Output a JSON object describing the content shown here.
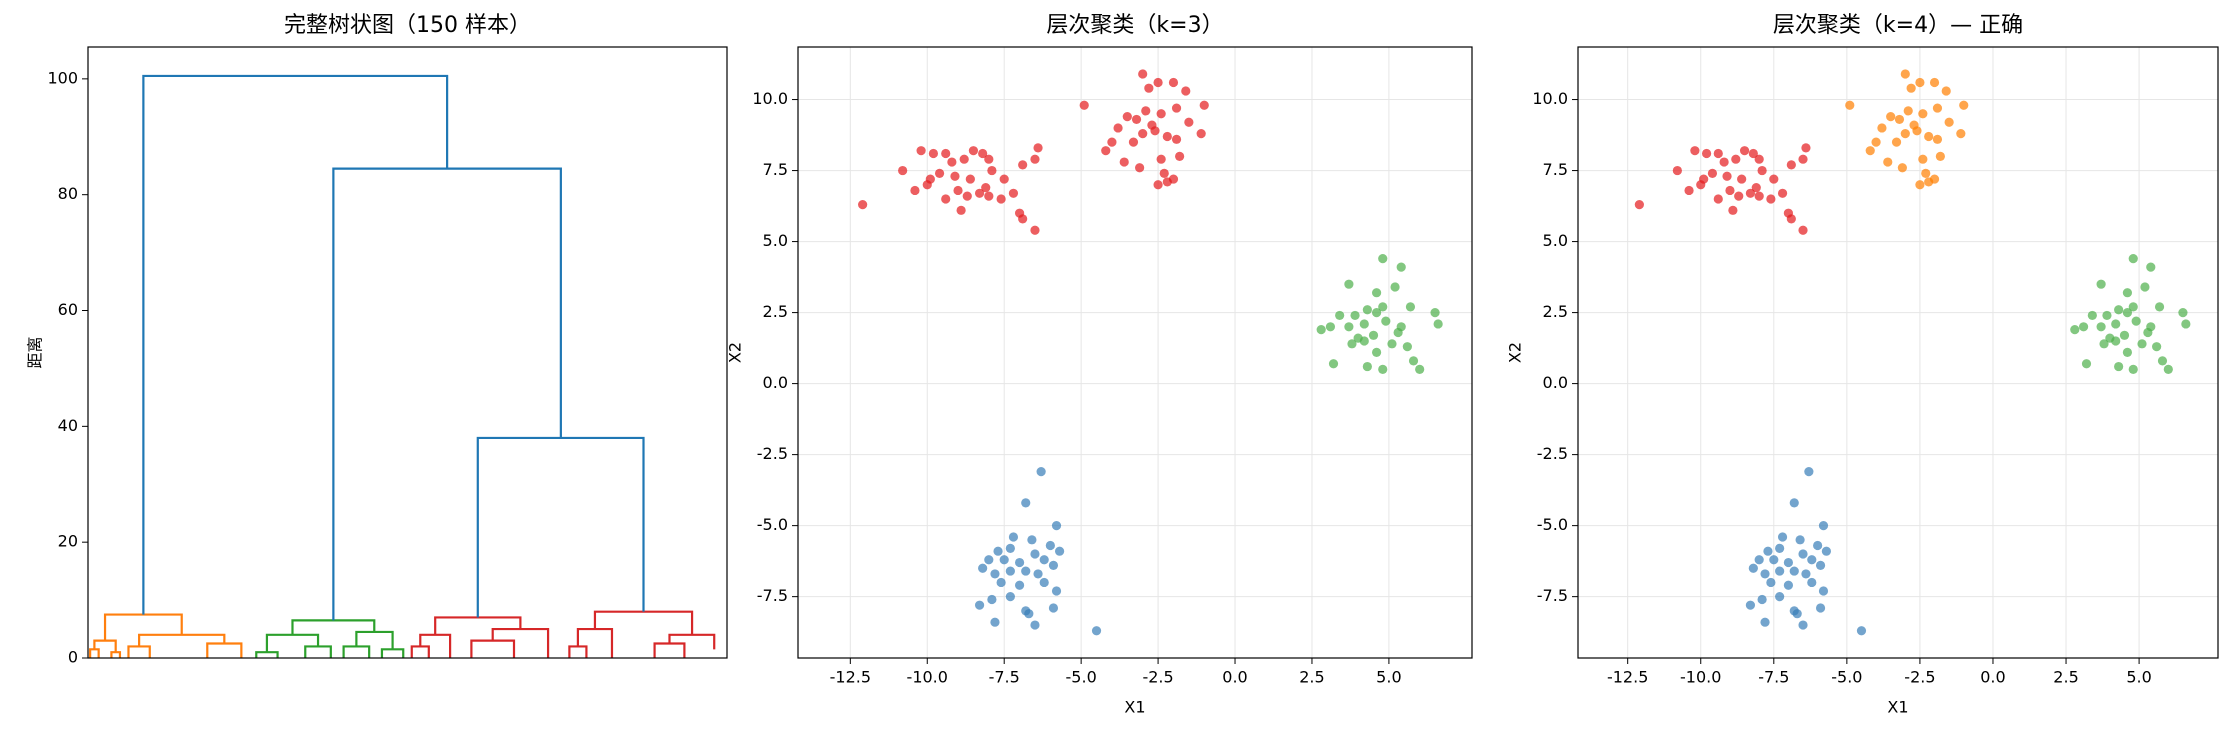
{
  "chart_data": [
    {
      "type": "dendrogram",
      "title": "完整树状图（150 样本）",
      "ylabel": "距离",
      "xlim": [
        0,
        1500
      ],
      "ylim": [
        0,
        105.5
      ],
      "yticks": [
        0,
        20,
        40,
        60,
        80,
        100
      ],
      "grid": false,
      "links": [
        {
          "color": "#ff7f0e",
          "icoord": [
            5,
            5,
            25,
            25
          ],
          "dcoord": [
            0,
            1.5,
            1.5,
            0
          ]
        },
        {
          "color": "#ff7f0e",
          "icoord": [
            55,
            55,
            75,
            75
          ],
          "dcoord": [
            0,
            1,
            1,
            0
          ]
        },
        {
          "color": "#ff7f0e",
          "icoord": [
            15,
            15,
            65,
            65
          ],
          "dcoord": [
            1.5,
            3,
            3,
            1
          ]
        },
        {
          "color": "#ff7f0e",
          "icoord": [
            95,
            95,
            145,
            145
          ],
          "dcoord": [
            0,
            2,
            2,
            0
          ]
        },
        {
          "color": "#ff7f0e",
          "icoord": [
            280,
            280,
            360,
            360
          ],
          "dcoord": [
            0,
            2.5,
            2.5,
            0
          ]
        },
        {
          "color": "#ff7f0e",
          "icoord": [
            120,
            120,
            320,
            320
          ],
          "dcoord": [
            2,
            4,
            4,
            2.5
          ]
        },
        {
          "color": "#ff7f0e",
          "icoord": [
            40,
            40,
            220,
            220
          ],
          "dcoord": [
            3,
            7.5,
            7.5,
            4
          ]
        },
        {
          "color": "#2ca02c",
          "icoord": [
            395,
            395,
            445,
            445
          ],
          "dcoord": [
            0,
            1,
            1,
            0
          ]
        },
        {
          "color": "#2ca02c",
          "icoord": [
            510,
            510,
            570,
            570
          ],
          "dcoord": [
            0,
            2,
            2,
            0
          ]
        },
        {
          "color": "#2ca02c",
          "icoord": [
            420,
            420,
            540,
            540
          ],
          "dcoord": [
            1,
            4,
            4,
            2
          ]
        },
        {
          "color": "#2ca02c",
          "icoord": [
            600,
            600,
            660,
            660
          ],
          "dcoord": [
            0,
            2,
            2,
            0
          ]
        },
        {
          "color": "#2ca02c",
          "icoord": [
            690,
            690,
            740,
            740
          ],
          "dcoord": [
            0,
            1.5,
            1.5,
            0
          ]
        },
        {
          "color": "#2ca02c",
          "icoord": [
            630,
            630,
            715,
            715
          ],
          "dcoord": [
            2,
            4.5,
            4.5,
            1.5
          ]
        },
        {
          "color": "#2ca02c",
          "icoord": [
            480,
            480,
            672,
            672
          ],
          "dcoord": [
            4,
            6.5,
            6.5,
            4.5
          ]
        },
        {
          "color": "#d62728",
          "icoord": [
            760,
            760,
            800,
            800
          ],
          "dcoord": [
            0,
            2,
            2,
            0
          ]
        },
        {
          "color": "#d62728",
          "icoord": [
            780,
            780,
            850,
            850
          ],
          "dcoord": [
            2,
            4,
            4,
            0
          ]
        },
        {
          "color": "#d62728",
          "icoord": [
            900,
            900,
            1000,
            1000
          ],
          "dcoord": [
            0,
            3,
            3,
            0
          ]
        },
        {
          "color": "#d62728",
          "icoord": [
            950,
            950,
            1080,
            1080
          ],
          "dcoord": [
            3,
            5,
            5,
            0
          ]
        },
        {
          "color": "#d62728",
          "icoord": [
            815,
            815,
            1015,
            1015
          ],
          "dcoord": [
            4,
            7,
            7,
            5
          ]
        },
        {
          "color": "#d62728",
          "icoord": [
            1130,
            1130,
            1170,
            1170
          ],
          "dcoord": [
            0,
            2,
            2,
            0
          ]
        },
        {
          "color": "#d62728",
          "icoord": [
            1150,
            1150,
            1230,
            1230
          ],
          "dcoord": [
            2,
            5,
            5,
            0
          ]
        },
        {
          "color": "#d62728",
          "icoord": [
            1330,
            1330,
            1400,
            1400
          ],
          "dcoord": [
            0,
            2.5,
            2.5,
            0
          ]
        },
        {
          "color": "#d62728",
          "icoord": [
            1365,
            1365,
            1470,
            1470
          ],
          "dcoord": [
            2.5,
            4,
            4,
            1.5
          ]
        },
        {
          "color": "#d62728",
          "icoord": [
            1190,
            1190,
            1418,
            1418
          ],
          "dcoord": [
            5,
            8,
            8,
            4
          ]
        },
        {
          "color": "#1f77b4",
          "icoord": [
            915,
            915,
            1304,
            1304
          ],
          "dcoord": [
            7,
            38,
            38,
            8
          ]
        },
        {
          "color": "#1f77b4",
          "icoord": [
            576,
            576,
            1110,
            1110
          ],
          "dcoord": [
            6.5,
            84.5,
            84.5,
            38
          ]
        },
        {
          "color": "#1f77b4",
          "icoord": [
            130,
            130,
            843,
            843
          ],
          "dcoord": [
            7.5,
            100.5,
            100.5,
            84.5
          ]
        }
      ]
    },
    {
      "type": "scatter",
      "title": "层次聚类（k=3）",
      "xlabel": "X1",
      "ylabel": "X2",
      "xlim": [
        -14.2,
        7.7
      ],
      "ylim": [
        -9.66,
        11.85
      ],
      "grid": true,
      "alpha": 0.7,
      "xticks": [
        -12.5,
        {
          "value": -10,
          "label": "-10.0"
        },
        -7.5,
        {
          "value": -5,
          "label": "-5.0"
        },
        -2.5,
        {
          "value": 0,
          "label": "0.0"
        },
        2.5,
        {
          "value": 5,
          "label": "5.0"
        }
      ],
      "yticks": [
        -7.5,
        {
          "value": -5,
          "label": "-5.0"
        },
        -2.5,
        {
          "value": 0,
          "label": "0.0"
        },
        2.5,
        {
          "value": 5,
          "label": "5.0"
        },
        7.5,
        {
          "value": 10,
          "label": "10.0"
        }
      ],
      "series": [
        {
          "color": "#e41a1c",
          "x": [
            -12.1,
            -10.8,
            -10.2,
            -9.8,
            -9.4,
            -10.4,
            -10.0,
            -9.6,
            -9.2,
            -8.8,
            -8.5,
            -8.2,
            -8.0,
            -8.6,
            -9.0,
            -8.7,
            -8.3,
            -8.0,
            -9.4,
            -8.9,
            -7.5,
            -7.2,
            -7.0,
            -6.9,
            -6.5,
            -6.9,
            -6.4,
            -6.5,
            -7.9,
            -9.9,
            -7.6,
            -8.1,
            -9.1,
            -4.9,
            -3.0,
            -2.5,
            -2.0,
            -1.6,
            -2.8,
            -3.5,
            -3.2,
            -2.9,
            -2.4,
            -1.9,
            -1.0,
            -1.5,
            -3.8,
            -3.0,
            -2.6,
            -2.2,
            -1.9,
            -1.1,
            -3.3,
            -4.0,
            -4.2,
            -3.6,
            -3.1,
            -2.4,
            -2.3,
            -2.2,
            -2.5,
            -2.0,
            -1.8,
            -2.7
          ],
          "y": [
            6.3,
            7.5,
            8.2,
            8.1,
            8.1,
            6.8,
            7.0,
            7.4,
            7.8,
            7.9,
            8.2,
            8.1,
            7.9,
            7.2,
            6.8,
            6.6,
            6.7,
            6.6,
            6.5,
            6.1,
            7.2,
            6.7,
            6.0,
            5.8,
            5.4,
            7.7,
            8.3,
            7.9,
            7.5,
            7.2,
            6.5,
            6.9,
            7.3,
            9.8,
            10.9,
            10.6,
            10.6,
            10.3,
            10.4,
            9.4,
            9.3,
            9.6,
            9.5,
            9.7,
            9.8,
            9.2,
            9.0,
            8.8,
            8.9,
            8.7,
            8.6,
            8.8,
            8.5,
            8.5,
            8.2,
            7.8,
            7.6,
            7.9,
            7.4,
            7.1,
            7.0,
            7.2,
            8.0,
            9.1
          ]
        },
        {
          "color": "#4daf4a",
          "x": [
            4.8,
            5.4,
            3.7,
            4.6,
            5.2,
            4.3,
            4.8,
            5.7,
            3.4,
            3.9,
            4.6,
            6.5,
            2.8,
            3.1,
            3.7,
            4.2,
            4.9,
            5.4,
            6.6,
            4.0,
            3.8,
            4.5,
            5.1,
            4.6,
            5.6,
            3.2,
            4.3,
            4.8,
            5.8,
            6.0,
            4.2,
            5.3
          ],
          "y": [
            4.4,
            4.1,
            3.5,
            3.2,
            3.4,
            2.6,
            2.7,
            2.7,
            2.4,
            2.4,
            2.5,
            2.5,
            1.9,
            2.0,
            2.0,
            2.1,
            2.2,
            2.0,
            2.1,
            1.6,
            1.4,
            1.7,
            1.4,
            1.1,
            1.3,
            0.7,
            0.6,
            0.5,
            0.8,
            0.5,
            1.5,
            1.8
          ]
        },
        {
          "color": "#377eb8",
          "x": [
            -6.3,
            -6.8,
            -5.8,
            -7.2,
            -6.6,
            -6.0,
            -7.7,
            -7.3,
            -6.5,
            -5.7,
            -8.0,
            -7.5,
            -7.0,
            -6.2,
            -5.9,
            -8.2,
            -7.8,
            -7.3,
            -6.8,
            -6.4,
            -7.6,
            -7.0,
            -6.2,
            -5.8,
            -8.3,
            -7.9,
            -7.3,
            -6.8,
            -6.7,
            -6.5,
            -5.9,
            -7.8,
            -4.5
          ],
          "y": [
            -3.1,
            -4.2,
            -5.0,
            -5.4,
            -5.5,
            -5.7,
            -5.9,
            -5.8,
            -6.0,
            -5.9,
            -6.2,
            -6.2,
            -6.3,
            -6.2,
            -6.4,
            -6.5,
            -6.7,
            -6.6,
            -6.6,
            -6.7,
            -7.0,
            -7.1,
            -7.0,
            -7.3,
            -7.8,
            -7.6,
            -7.5,
            -8.0,
            -8.1,
            -8.5,
            -7.9,
            -8.4,
            -8.7
          ]
        }
      ]
    },
    {
      "type": "scatter",
      "title": "层次聚类（k=4）— 正确",
      "xlabel": "X1",
      "ylabel": "X2",
      "xlim": [
        -14.2,
        7.7
      ],
      "ylim": [
        -9.66,
        11.85
      ],
      "grid": true,
      "alpha": 0.7,
      "xticks": [
        -12.5,
        {
          "value": -10,
          "label": "-10.0"
        },
        -7.5,
        {
          "value": -5,
          "label": "-5.0"
        },
        -2.5,
        {
          "value": 0,
          "label": "0.0"
        },
        2.5,
        {
          "value": 5,
          "label": "5.0"
        }
      ],
      "yticks": [
        -7.5,
        {
          "value": -5,
          "label": "-5.0"
        },
        -2.5,
        {
          "value": 0,
          "label": "0.0"
        },
        2.5,
        {
          "value": 5,
          "label": "5.0"
        },
        7.5,
        {
          "value": 10,
          "label": "10.0"
        }
      ],
      "series": [
        {
          "color": "#e41a1c",
          "x": [
            -12.1,
            -10.8,
            -10.2,
            -9.8,
            -9.4,
            -10.4,
            -10.0,
            -9.6,
            -9.2,
            -8.8,
            -8.5,
            -8.2,
            -8.0,
            -8.6,
            -9.0,
            -8.7,
            -8.3,
            -8.0,
            -9.4,
            -8.9,
            -7.5,
            -7.2,
            -7.0,
            -6.9,
            -6.5,
            -6.9,
            -6.4,
            -6.5,
            -7.9,
            -9.9,
            -7.6,
            -8.1,
            -9.1
          ],
          "y": [
            6.3,
            7.5,
            8.2,
            8.1,
            8.1,
            6.8,
            7.0,
            7.4,
            7.8,
            7.9,
            8.2,
            8.1,
            7.9,
            7.2,
            6.8,
            6.6,
            6.7,
            6.6,
            6.5,
            6.1,
            7.2,
            6.7,
            6.0,
            5.8,
            5.4,
            7.7,
            8.3,
            7.9,
            7.5,
            7.2,
            6.5,
            6.9,
            7.3
          ]
        },
        {
          "color": "#ff7f00",
          "x": [
            -4.9,
            -3.0,
            -2.5,
            -2.0,
            -1.6,
            -2.8,
            -3.5,
            -3.2,
            -2.9,
            -2.4,
            -1.9,
            -1.0,
            -1.5,
            -3.8,
            -3.0,
            -2.6,
            -2.2,
            -1.9,
            -1.1,
            -3.3,
            -4.0,
            -4.2,
            -3.6,
            -3.1,
            -2.4,
            -2.3,
            -2.2,
            -2.5,
            -2.0,
            -1.8,
            -2.7
          ],
          "y": [
            9.8,
            10.9,
            10.6,
            10.6,
            10.3,
            10.4,
            9.4,
            9.3,
            9.6,
            9.5,
            9.7,
            9.8,
            9.2,
            9.0,
            8.8,
            8.9,
            8.7,
            8.6,
            8.8,
            8.5,
            8.5,
            8.2,
            7.8,
            7.6,
            7.9,
            7.4,
            7.1,
            7.0,
            7.2,
            8.0,
            9.1
          ]
        },
        {
          "color": "#4daf4a",
          "x": [
            4.8,
            5.4,
            3.7,
            4.6,
            5.2,
            4.3,
            4.8,
            5.7,
            3.4,
            3.9,
            4.6,
            6.5,
            2.8,
            3.1,
            3.7,
            4.2,
            4.9,
            5.4,
            6.6,
            4.0,
            3.8,
            4.5,
            5.1,
            4.6,
            5.6,
            3.2,
            4.3,
            4.8,
            5.8,
            6.0,
            4.2,
            5.3
          ],
          "y": [
            4.4,
            4.1,
            3.5,
            3.2,
            3.4,
            2.6,
            2.7,
            2.7,
            2.4,
            2.4,
            2.5,
            2.5,
            1.9,
            2.0,
            2.0,
            2.1,
            2.2,
            2.0,
            2.1,
            1.6,
            1.4,
            1.7,
            1.4,
            1.1,
            1.3,
            0.7,
            0.6,
            0.5,
            0.8,
            0.5,
            1.5,
            1.8
          ]
        },
        {
          "color": "#377eb8",
          "x": [
            -6.3,
            -6.8,
            -5.8,
            -7.2,
            -6.6,
            -6.0,
            -7.7,
            -7.3,
            -6.5,
            -5.7,
            -8.0,
            -7.5,
            -7.0,
            -6.2,
            -5.9,
            -8.2,
            -7.8,
            -7.3,
            -6.8,
            -6.4,
            -7.6,
            -7.0,
            -6.2,
            -5.8,
            -8.3,
            -7.9,
            -7.3,
            -6.8,
            -6.7,
            -6.5,
            -5.9,
            -7.8,
            -4.5
          ],
          "y": [
            -3.1,
            -4.2,
            -5.0,
            -5.4,
            -5.5,
            -5.7,
            -5.9,
            -5.8,
            -6.0,
            -5.9,
            -6.2,
            -6.2,
            -6.3,
            -6.2,
            -6.4,
            -6.5,
            -6.7,
            -6.6,
            -6.6,
            -6.7,
            -7.0,
            -7.1,
            -7.0,
            -7.3,
            -7.8,
            -7.6,
            -7.5,
            -8.0,
            -8.1,
            -8.5,
            -7.9,
            -8.4,
            -8.7
          ]
        }
      ]
    }
  ]
}
